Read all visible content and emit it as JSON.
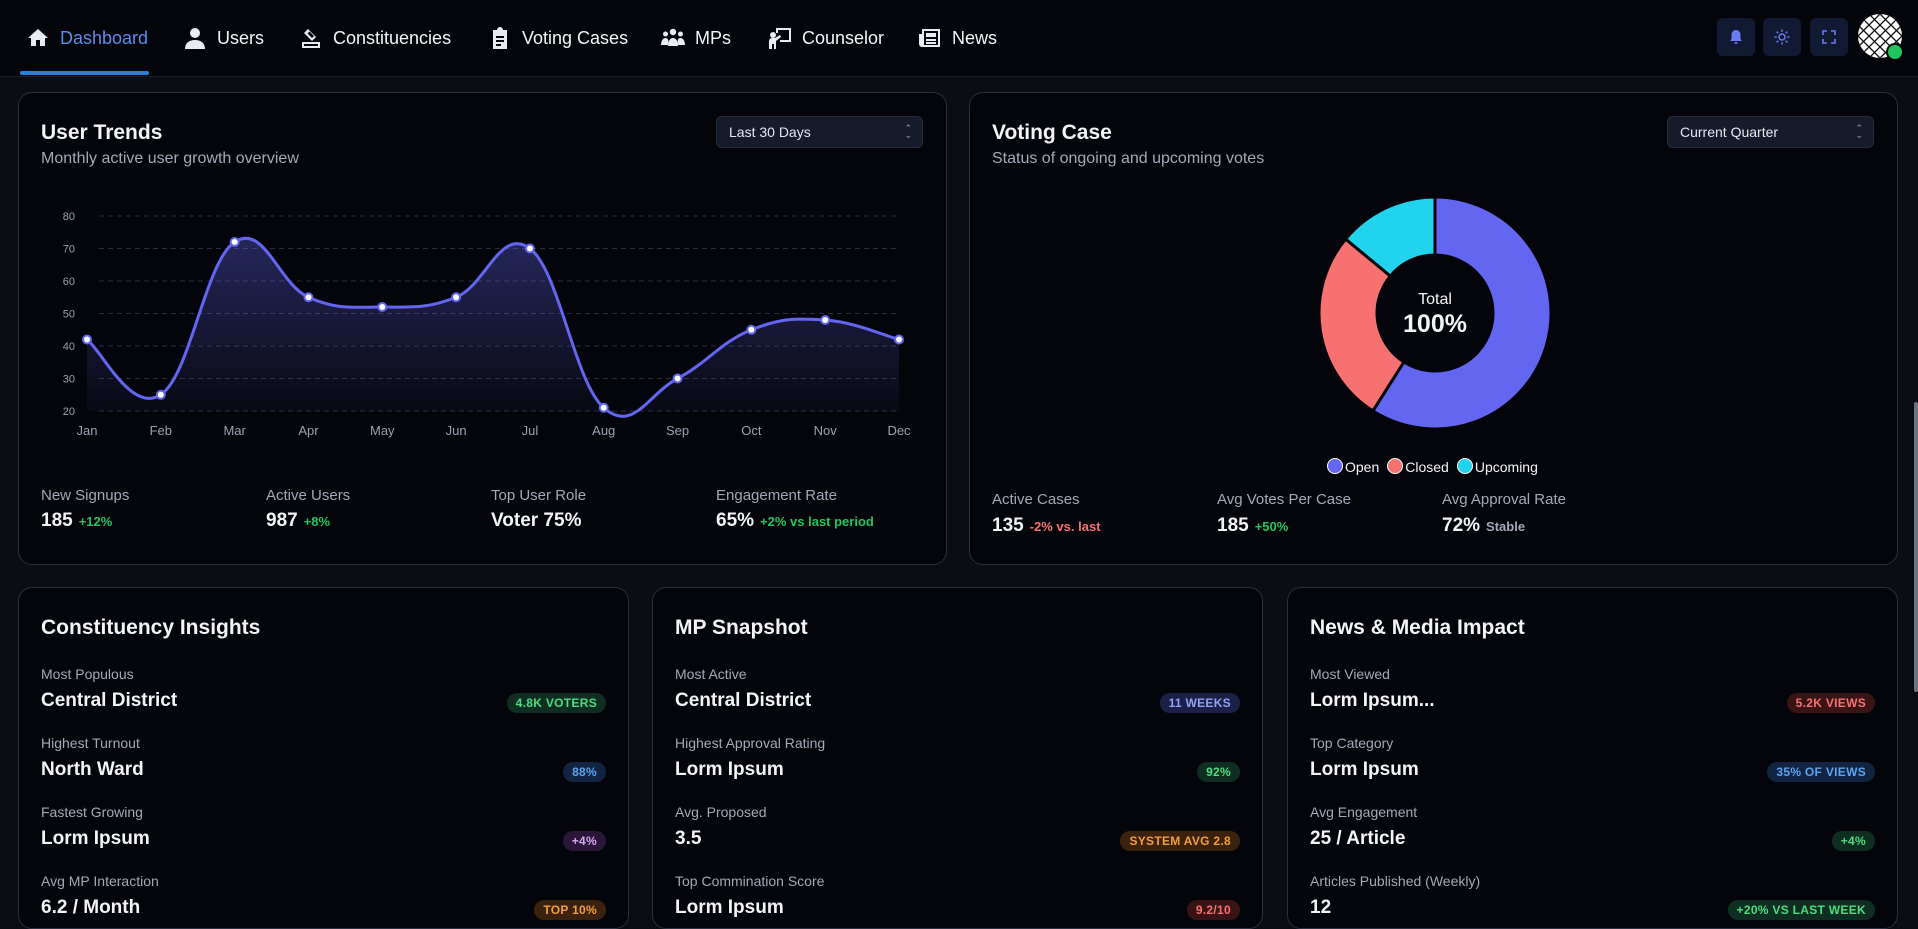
{
  "nav": {
    "items": [
      {
        "label": "Dashboard",
        "icon": "home-icon"
      },
      {
        "label": "Users",
        "icon": "user-icon"
      },
      {
        "label": "Constituencies",
        "icon": "ballot-icon"
      },
      {
        "label": "Voting Cases",
        "icon": "clipboard-icon"
      },
      {
        "label": "MPs",
        "icon": "group-icon"
      },
      {
        "label": "Counselor",
        "icon": "presenter-icon"
      },
      {
        "label": "News",
        "icon": "newspaper-icon"
      }
    ],
    "active": "Dashboard"
  },
  "colors": {
    "accent": "#6366f1",
    "open": "#6366f1",
    "closed": "#f87171",
    "upcoming": "#22d3ee",
    "positive": "#22c55e",
    "negative": "#f87171"
  },
  "user_trends": {
    "title": "User Trends",
    "subtitle": "Monthly active user growth overview",
    "range": "Last 30 Days",
    "stats": [
      {
        "label": "New Signups",
        "value": "185",
        "delta": "+12%"
      },
      {
        "label": "Active Users",
        "value": "987",
        "delta": "+8%"
      },
      {
        "label": "Top User Role",
        "value": "Voter 75%",
        "delta": ""
      },
      {
        "label": "Engagement Rate",
        "value": "65%",
        "delta": "+2% vs last period"
      }
    ]
  },
  "voting_case": {
    "title": "Voting Case",
    "subtitle": "Status of ongoing and upcoming votes",
    "range": "Current Quarter",
    "total_label": "Total",
    "total_value": "100%",
    "legend": [
      "Open",
      "Closed",
      "Upcoming"
    ],
    "stats": [
      {
        "label": "Active Cases",
        "value": "135",
        "delta": "-2% vs. last"
      },
      {
        "label": "Avg Votes Per Case",
        "value": "185",
        "delta": "+50%"
      },
      {
        "label": "Avg Approval Rate",
        "value": "72%",
        "delta": "Stable"
      }
    ]
  },
  "chart_data": [
    {
      "type": "line",
      "title": "User Trends",
      "x": [
        "Jan",
        "Feb",
        "Mar",
        "Apr",
        "May",
        "Jun",
        "Jul",
        "Aug",
        "Sep",
        "Oct",
        "Nov",
        "Dec"
      ],
      "series": [
        {
          "name": "Active Users",
          "values": [
            42,
            25,
            72,
            55,
            52,
            55,
            70,
            21,
            30,
            45,
            48,
            42
          ]
        }
      ],
      "ylim": [
        20,
        80
      ],
      "yticks": [
        20,
        30,
        40,
        50,
        60,
        70,
        80
      ],
      "grid": true
    },
    {
      "type": "pie",
      "title": "Voting Case",
      "categories": [
        "Open",
        "Closed",
        "Upcoming"
      ],
      "values": [
        59,
        27,
        14
      ]
    }
  ],
  "constituency": {
    "title": "Constituency Insights",
    "rows": [
      {
        "label": "Most Populous",
        "value": "Central District",
        "badge": "4.8K VOTERS"
      },
      {
        "label": "Highest Turnout",
        "value": "North Ward",
        "badge": "88%"
      },
      {
        "label": "Fastest Growing",
        "value": "Lorm Ipsum",
        "badge": "+4%"
      },
      {
        "label": "Avg MP Interaction",
        "value": "6.2 / Month",
        "badge": "TOP 10%"
      }
    ]
  },
  "mp_snapshot": {
    "title": "MP Snapshot",
    "rows": [
      {
        "label": "Most Active",
        "value": "Central District",
        "badge": "11 WEEKS"
      },
      {
        "label": "Highest Approval Rating",
        "value": "Lorm Ipsum",
        "badge": "92%"
      },
      {
        "label": "Avg. Proposed",
        "value": "3.5",
        "badge": "SYSTEM AVG 2.8"
      },
      {
        "label": "Top Commination Score",
        "value": "Lorm Ipsum",
        "badge": "9.2/10"
      }
    ]
  },
  "news_impact": {
    "title": "News & Media Impact",
    "rows": [
      {
        "label": "Most Viewed",
        "value": "Lorm Ipsum...",
        "badge": "5.2K VIEWS"
      },
      {
        "label": "Top Category",
        "value": "Lorm Ipsum",
        "badge": "35% OF VIEWS"
      },
      {
        "label": "Avg Engagement",
        "value": "25 / Article",
        "badge": "+4%"
      },
      {
        "label": "Articles Published (Weekly)",
        "value": "12",
        "badge": "+20% VS LAST WEEK"
      }
    ]
  }
}
